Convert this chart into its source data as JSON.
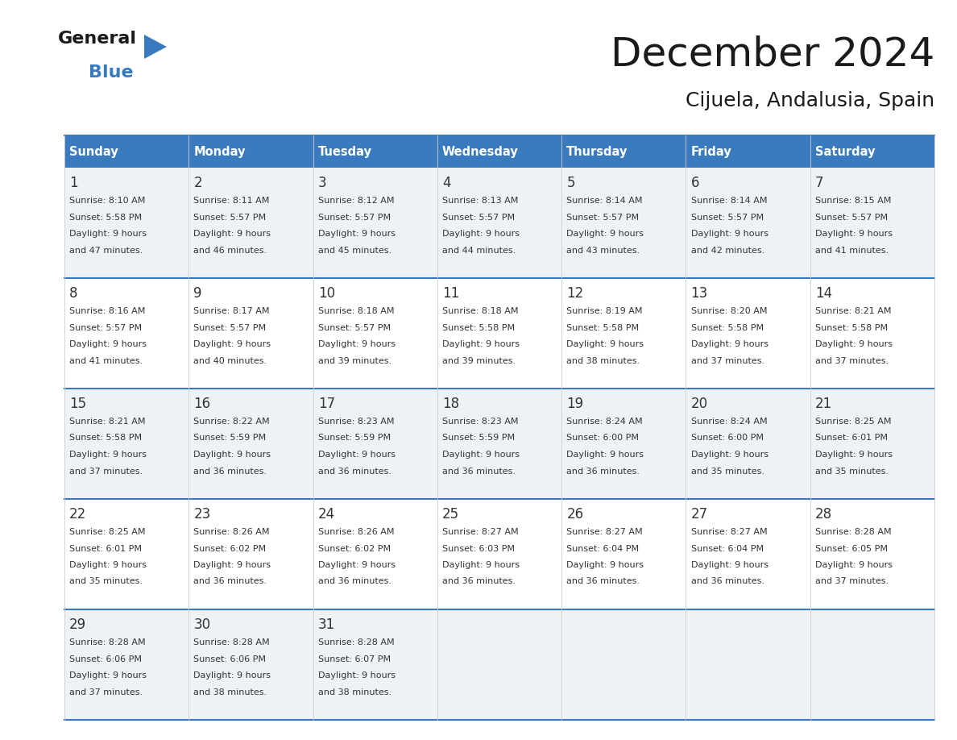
{
  "title": "December 2024",
  "subtitle": "Cijuela, Andalusia, Spain",
  "header_bg": "#3a7bbf",
  "header_text": "#ffffff",
  "row_bg_odd": "#edf2f7",
  "row_bg_even": "#ffffff",
  "separator_color": "#3a7bbf",
  "cell_text_color": "#333333",
  "days_of_week": [
    "Sunday",
    "Monday",
    "Tuesday",
    "Wednesday",
    "Thursday",
    "Friday",
    "Saturday"
  ],
  "weeks": [
    [
      {
        "day": 1,
        "sunrise": "8:10 AM",
        "sunset": "5:58 PM",
        "daylight_line1": "9 hours",
        "daylight_line2": "and 47 minutes."
      },
      {
        "day": 2,
        "sunrise": "8:11 AM",
        "sunset": "5:57 PM",
        "daylight_line1": "9 hours",
        "daylight_line2": "and 46 minutes."
      },
      {
        "day": 3,
        "sunrise": "8:12 AM",
        "sunset": "5:57 PM",
        "daylight_line1": "9 hours",
        "daylight_line2": "and 45 minutes."
      },
      {
        "day": 4,
        "sunrise": "8:13 AM",
        "sunset": "5:57 PM",
        "daylight_line1": "9 hours",
        "daylight_line2": "and 44 minutes."
      },
      {
        "day": 5,
        "sunrise": "8:14 AM",
        "sunset": "5:57 PM",
        "daylight_line1": "9 hours",
        "daylight_line2": "and 43 minutes."
      },
      {
        "day": 6,
        "sunrise": "8:14 AM",
        "sunset": "5:57 PM",
        "daylight_line1": "9 hours",
        "daylight_line2": "and 42 minutes."
      },
      {
        "day": 7,
        "sunrise": "8:15 AM",
        "sunset": "5:57 PM",
        "daylight_line1": "9 hours",
        "daylight_line2": "and 41 minutes."
      }
    ],
    [
      {
        "day": 8,
        "sunrise": "8:16 AM",
        "sunset": "5:57 PM",
        "daylight_line1": "9 hours",
        "daylight_line2": "and 41 minutes."
      },
      {
        "day": 9,
        "sunrise": "8:17 AM",
        "sunset": "5:57 PM",
        "daylight_line1": "9 hours",
        "daylight_line2": "and 40 minutes."
      },
      {
        "day": 10,
        "sunrise": "8:18 AM",
        "sunset": "5:57 PM",
        "daylight_line1": "9 hours",
        "daylight_line2": "and 39 minutes."
      },
      {
        "day": 11,
        "sunrise": "8:18 AM",
        "sunset": "5:58 PM",
        "daylight_line1": "9 hours",
        "daylight_line2": "and 39 minutes."
      },
      {
        "day": 12,
        "sunrise": "8:19 AM",
        "sunset": "5:58 PM",
        "daylight_line1": "9 hours",
        "daylight_line2": "and 38 minutes."
      },
      {
        "day": 13,
        "sunrise": "8:20 AM",
        "sunset": "5:58 PM",
        "daylight_line1": "9 hours",
        "daylight_line2": "and 37 minutes."
      },
      {
        "day": 14,
        "sunrise": "8:21 AM",
        "sunset": "5:58 PM",
        "daylight_line1": "9 hours",
        "daylight_line2": "and 37 minutes."
      }
    ],
    [
      {
        "day": 15,
        "sunrise": "8:21 AM",
        "sunset": "5:58 PM",
        "daylight_line1": "9 hours",
        "daylight_line2": "and 37 minutes."
      },
      {
        "day": 16,
        "sunrise": "8:22 AM",
        "sunset": "5:59 PM",
        "daylight_line1": "9 hours",
        "daylight_line2": "and 36 minutes."
      },
      {
        "day": 17,
        "sunrise": "8:23 AM",
        "sunset": "5:59 PM",
        "daylight_line1": "9 hours",
        "daylight_line2": "and 36 minutes."
      },
      {
        "day": 18,
        "sunrise": "8:23 AM",
        "sunset": "5:59 PM",
        "daylight_line1": "9 hours",
        "daylight_line2": "and 36 minutes."
      },
      {
        "day": 19,
        "sunrise": "8:24 AM",
        "sunset": "6:00 PM",
        "daylight_line1": "9 hours",
        "daylight_line2": "and 36 minutes."
      },
      {
        "day": 20,
        "sunrise": "8:24 AM",
        "sunset": "6:00 PM",
        "daylight_line1": "9 hours",
        "daylight_line2": "and 35 minutes."
      },
      {
        "day": 21,
        "sunrise": "8:25 AM",
        "sunset": "6:01 PM",
        "daylight_line1": "9 hours",
        "daylight_line2": "and 35 minutes."
      }
    ],
    [
      {
        "day": 22,
        "sunrise": "8:25 AM",
        "sunset": "6:01 PM",
        "daylight_line1": "9 hours",
        "daylight_line2": "and 35 minutes."
      },
      {
        "day": 23,
        "sunrise": "8:26 AM",
        "sunset": "6:02 PM",
        "daylight_line1": "9 hours",
        "daylight_line2": "and 36 minutes."
      },
      {
        "day": 24,
        "sunrise": "8:26 AM",
        "sunset": "6:02 PM",
        "daylight_line1": "9 hours",
        "daylight_line2": "and 36 minutes."
      },
      {
        "day": 25,
        "sunrise": "8:27 AM",
        "sunset": "6:03 PM",
        "daylight_line1": "9 hours",
        "daylight_line2": "and 36 minutes."
      },
      {
        "day": 26,
        "sunrise": "8:27 AM",
        "sunset": "6:04 PM",
        "daylight_line1": "9 hours",
        "daylight_line2": "and 36 minutes."
      },
      {
        "day": 27,
        "sunrise": "8:27 AM",
        "sunset": "6:04 PM",
        "daylight_line1": "9 hours",
        "daylight_line2": "and 36 minutes."
      },
      {
        "day": 28,
        "sunrise": "8:28 AM",
        "sunset": "6:05 PM",
        "daylight_line1": "9 hours",
        "daylight_line2": "and 37 minutes."
      }
    ],
    [
      {
        "day": 29,
        "sunrise": "8:28 AM",
        "sunset": "6:06 PM",
        "daylight_line1": "9 hours",
        "daylight_line2": "and 37 minutes."
      },
      {
        "day": 30,
        "sunrise": "8:28 AM",
        "sunset": "6:06 PM",
        "daylight_line1": "9 hours",
        "daylight_line2": "and 38 minutes."
      },
      {
        "day": 31,
        "sunrise": "8:28 AM",
        "sunset": "6:07 PM",
        "daylight_line1": "9 hours",
        "daylight_line2": "and 38 minutes."
      },
      null,
      null,
      null,
      null
    ]
  ],
  "logo_text_general": "General",
  "logo_text_blue": "Blue",
  "logo_color_general": "#1a1a1a",
  "logo_color_blue": "#3a7bbf",
  "logo_triangle_color": "#3a7bbf",
  "title_fontsize": 36,
  "subtitle_fontsize": 18,
  "header_fontsize": 10.5,
  "day_num_fontsize": 12,
  "cell_fontsize": 8.0
}
